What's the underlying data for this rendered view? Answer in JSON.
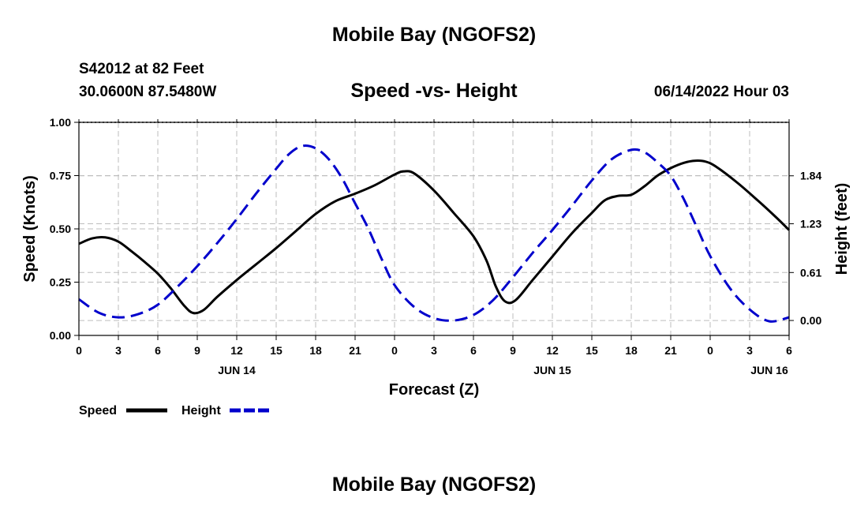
{
  "header": {
    "title": "Mobile Bay (NGOFS2)",
    "station": "S42012 at 82 Feet",
    "coords": "30.0600N  87.5480W",
    "datetime": "06/14/2022 Hour 03"
  },
  "footer": {
    "title": "Mobile Bay (NGOFS2)"
  },
  "chart_data": {
    "type": "line",
    "title": "Speed -vs- Height",
    "xlabel": "Forecast (Z)",
    "ylabel": "Speed (Knots)",
    "y2label": "Height (feet)",
    "xlim": [
      0,
      54
    ],
    "ylim": [
      0,
      1
    ],
    "y2lim": [
      -0.19,
      2.52
    ],
    "xticks": [
      0,
      3,
      6,
      9,
      12,
      15,
      18,
      21,
      24,
      27,
      30,
      33,
      36,
      39,
      42,
      45,
      48,
      51,
      54
    ],
    "xtick_labels": [
      "0",
      "3",
      "6",
      "9",
      "12",
      "15",
      "18",
      "21",
      "0",
      "3",
      "6",
      "9",
      "12",
      "15",
      "18",
      "21",
      "0",
      "3",
      "6"
    ],
    "date_labels": [
      {
        "x": 12,
        "label": "JUN 14"
      },
      {
        "x": 36,
        "label": "JUN 15"
      },
      {
        "x": 52.5,
        "label": "JUN 16"
      }
    ],
    "yticks": [
      0.0,
      0.25,
      0.5,
      0.75,
      1.0
    ],
    "ytick_labels": [
      "0.00",
      "0.25",
      "0.50",
      "0.75",
      "1.00"
    ],
    "y2ticks": [
      0.0,
      0.61,
      1.23,
      1.84
    ],
    "y2tick_labels": [
      "0.00",
      "0.61",
      "1.23",
      "1.84"
    ],
    "grid": true,
    "legend_position": "bottom-left",
    "series": [
      {
        "name": "Speed",
        "axis": "left",
        "color": "#000000",
        "style": "solid",
        "x": [
          0,
          1,
          2,
          3,
          4,
          5,
          6,
          7,
          8,
          8.7,
          9.5,
          10.5,
          12,
          13.5,
          15,
          16.5,
          18,
          19.5,
          21,
          22.5,
          24,
          24.7,
          25.5,
          27,
          28.5,
          30,
          31,
          31.7,
          32.4,
          33.2,
          34.5,
          36,
          37.5,
          39,
          40,
          41,
          42,
          43,
          44,
          45,
          46,
          46.9,
          47.7,
          48.5,
          50,
          51.5,
          53,
          54
        ],
        "values": [
          0.43,
          0.455,
          0.46,
          0.44,
          0.395,
          0.345,
          0.29,
          0.22,
          0.14,
          0.105,
          0.12,
          0.18,
          0.26,
          0.335,
          0.41,
          0.49,
          0.57,
          0.63,
          0.665,
          0.705,
          0.755,
          0.77,
          0.76,
          0.68,
          0.575,
          0.465,
          0.35,
          0.23,
          0.16,
          0.165,
          0.26,
          0.37,
          0.48,
          0.575,
          0.635,
          0.655,
          0.66,
          0.7,
          0.75,
          0.785,
          0.81,
          0.82,
          0.815,
          0.79,
          0.72,
          0.64,
          0.555,
          0.495
        ]
      },
      {
        "name": "Height",
        "axis": "right",
        "color": "#0000cc",
        "style": "dashed",
        "x": [
          0,
          1.5,
          3,
          4.5,
          6,
          7.5,
          9,
          10.5,
          12,
          13.5,
          15,
          16,
          17,
          18,
          19,
          20,
          21,
          22,
          23,
          24,
          25.5,
          27,
          28.5,
          30,
          31.5,
          33,
          34.5,
          36,
          37.5,
          39,
          40.5,
          42,
          43,
          44,
          45,
          46,
          47,
          48,
          49.5,
          51,
          52.5,
          54
        ],
        "values": [
          0.27,
          0.1,
          0.04,
          0.08,
          0.2,
          0.43,
          0.69,
          0.98,
          1.29,
          1.62,
          1.93,
          2.12,
          2.22,
          2.19,
          2.05,
          1.81,
          1.49,
          1.17,
          0.79,
          0.45,
          0.17,
          0.03,
          0.0,
          0.07,
          0.26,
          0.55,
          0.86,
          1.15,
          1.46,
          1.78,
          2.05,
          2.17,
          2.14,
          2.01,
          1.84,
          1.54,
          1.18,
          0.82,
          0.41,
          0.14,
          -0.01,
          0.04
        ]
      }
    ]
  }
}
